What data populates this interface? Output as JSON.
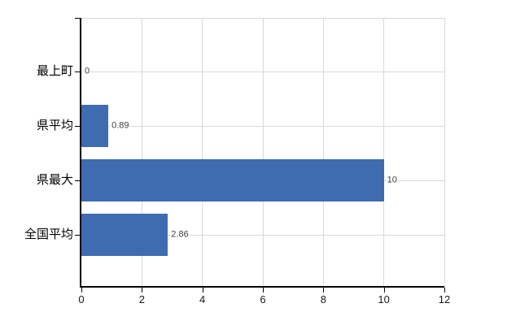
{
  "chart_data": {
    "type": "bar",
    "orientation": "horizontal",
    "title": "",
    "xlabel": "",
    "ylabel": "",
    "categories": [
      "最上町",
      "県平均",
      "県最大",
      "全国平均"
    ],
    "values": [
      0,
      0.89,
      10,
      2.86
    ],
    "value_labels": [
      "0",
      "0.89",
      "10",
      "2.86"
    ],
    "xlim": [
      0,
      12
    ],
    "x_ticks": [
      0,
      2,
      4,
      6,
      8,
      10,
      12
    ],
    "grid": true,
    "legend_position": "none",
    "colors": {
      "bar": "#3f6cb0",
      "gridline": "#d9d9d9",
      "axis": "#000000",
      "category_label_text": "#000000",
      "tick_label_text": "#1a1a1a",
      "value_label_text": "#3d3d3d",
      "background": "#ffffff"
    }
  }
}
